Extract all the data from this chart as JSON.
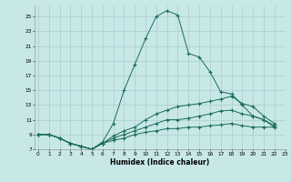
{
  "xlabel": "Humidex (Indice chaleur)",
  "bg_color": "#c8e8e8",
  "grid_color": "#aacccc",
  "line_color": "#1a6b5a",
  "xlim_min": 0,
  "xlim_max": 23,
  "ylim_min": 7,
  "ylim_max": 26.5,
  "xtick_labels": [
    "0",
    "1",
    "2",
    "3",
    "4",
    "5",
    "6",
    "7",
    "8",
    "9",
    "10",
    "11",
    "12",
    "13",
    "14",
    "15",
    "16",
    "17",
    "18",
    "19",
    "20",
    "21",
    "22",
    "23"
  ],
  "ytick_vals": [
    7,
    9,
    11,
    13,
    15,
    17,
    19,
    21,
    23,
    25
  ],
  "series": [
    [
      9.0,
      9.0,
      8.5,
      7.8,
      7.4,
      7.0,
      8.0,
      10.5,
      15.0,
      18.5,
      22.0,
      25.0,
      25.8,
      25.2,
      20.0,
      19.5,
      17.5,
      14.8,
      14.5,
      13.0,
      11.5,
      11.0,
      10.0
    ],
    [
      9.0,
      9.0,
      8.5,
      7.8,
      7.4,
      7.0,
      7.8,
      8.8,
      9.5,
      10.0,
      11.0,
      11.8,
      12.3,
      12.8,
      13.0,
      13.2,
      13.5,
      13.8,
      14.2,
      13.2,
      12.8,
      11.5,
      10.5
    ],
    [
      9.0,
      9.0,
      8.5,
      7.8,
      7.4,
      7.0,
      7.8,
      8.5,
      9.0,
      9.5,
      10.0,
      10.5,
      11.0,
      11.0,
      11.2,
      11.5,
      11.8,
      12.2,
      12.3,
      11.8,
      11.5,
      11.0,
      10.2
    ],
    [
      9.0,
      9.0,
      8.5,
      7.8,
      7.4,
      7.0,
      7.8,
      8.2,
      8.5,
      9.0,
      9.3,
      9.5,
      9.8,
      9.8,
      10.0,
      10.0,
      10.2,
      10.3,
      10.5,
      10.2,
      10.0,
      10.0,
      10.0
    ]
  ]
}
